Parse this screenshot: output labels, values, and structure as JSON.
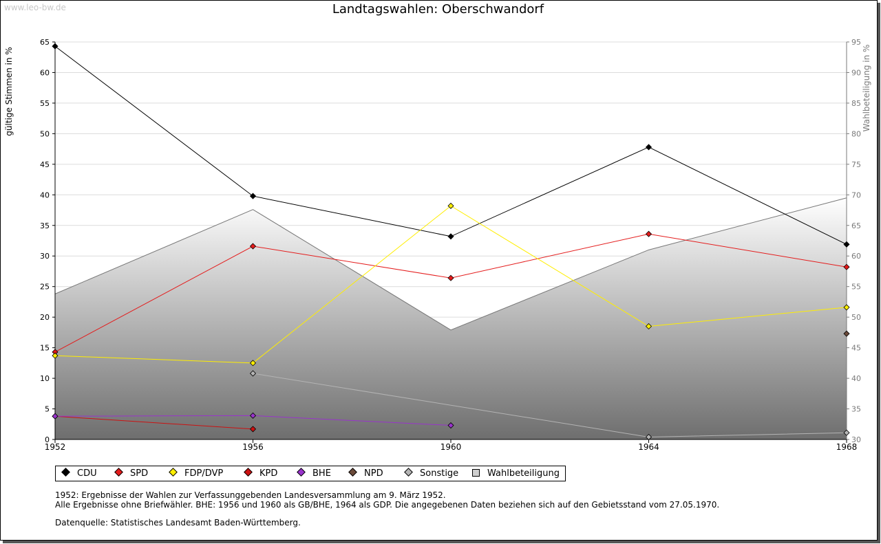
{
  "watermark": "www.leo-bw.de",
  "chart_data": {
    "type": "line",
    "title": "Landtagswahlen: Oberschwandorf",
    "ylabel": "gültige Stimmen in %",
    "y2label": "Wahlbeteiligung in %",
    "x": [
      "1952",
      "1956",
      "1960",
      "1964",
      "1968"
    ],
    "ylim": [
      0,
      65
    ],
    "y2lim": [
      30,
      95
    ],
    "yticks": [
      "0",
      "5",
      "10",
      "15",
      "20",
      "25",
      "30",
      "35",
      "40",
      "45",
      "50",
      "55",
      "60",
      "65"
    ],
    "y2ticks": [
      "30",
      "35",
      "40",
      "45",
      "50",
      "55",
      "60",
      "65",
      "70",
      "75",
      "80",
      "85",
      "90",
      "95"
    ],
    "grid": true,
    "series": [
      {
        "name": "CDU",
        "color": "#000000",
        "values": [
          64.3,
          39.8,
          33.2,
          47.8,
          31.9
        ]
      },
      {
        "name": "SPD",
        "color": "#e41b1b",
        "values": [
          14.3,
          31.6,
          26.4,
          33.6,
          28.2
        ]
      },
      {
        "name": "FDP/DVP",
        "color": "#ffee00",
        "values": [
          13.7,
          12.5,
          38.2,
          18.5,
          21.6
        ]
      },
      {
        "name": "KPD",
        "color": "#cc1111",
        "values": [
          3.8,
          1.7,
          null,
          null,
          null
        ]
      },
      {
        "name": "BHE",
        "color": "#9933cc",
        "values": [
          3.8,
          3.9,
          2.3,
          null,
          null
        ]
      },
      {
        "name": "NPD",
        "color": "#6b4a3a",
        "values": [
          null,
          null,
          null,
          null,
          17.3
        ]
      },
      {
        "name": "Sonstige",
        "color": "#b4b4b4",
        "values": [
          null,
          10.8,
          null,
          0.4,
          1.1
        ]
      }
    ],
    "turnout": {
      "name": "Wahlbeteiligung",
      "values": [
        53.8,
        67.6,
        47.9,
        61.0,
        69.5
      ]
    },
    "legend_position": "bottom"
  },
  "notes": [
    "1952: Ergebnisse der Wahlen zur Verfassunggebenden Landesversammlung am 9. März 1952.",
    "Alle Ergebnisse ohne Briefwähler. BHE: 1956 und 1960 als GB/BHE, 1964 als GDP. Die angegebenen Daten beziehen sich auf den Gebietsstand vom 27.05.1970.",
    "Datenquelle: Statistisches Landesamt Baden-Württemberg."
  ]
}
